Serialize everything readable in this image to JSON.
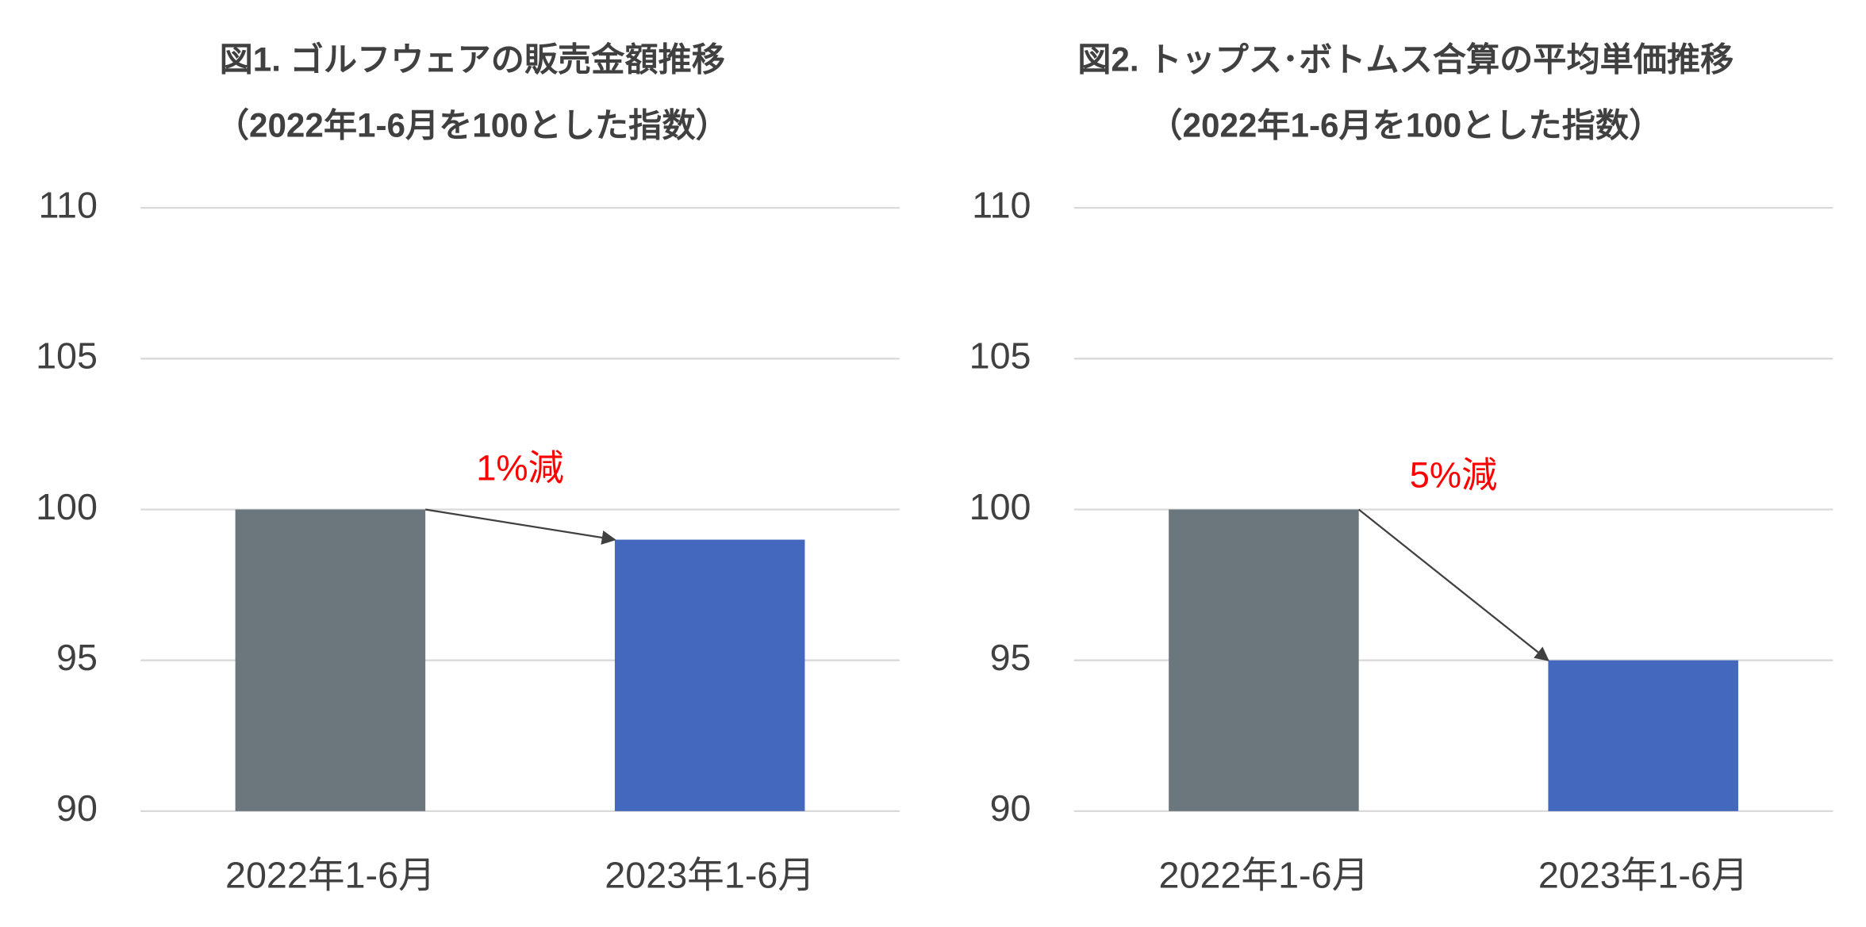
{
  "chart_data": [
    {
      "type": "bar",
      "title": "図1. ゴルフウェアの販売金額推移",
      "subtitle": "（2022年1-6月を100とした指数）",
      "categories": [
        "2022年1-6月",
        "2023年1-6月"
      ],
      "values": [
        100,
        99
      ],
      "colors": [
        "#6b767d",
        "#4568bf"
      ],
      "annotation": "1%減",
      "ylim": [
        90,
        110
      ],
      "yticks": [
        90,
        95,
        100,
        105,
        110
      ],
      "grid": true
    },
    {
      "type": "bar",
      "title": "図2. トップス･ボトムス合算の平均単価推移",
      "subtitle": "（2022年1-6月を100とした指数）",
      "categories": [
        "2022年1-6月",
        "2023年1-6月"
      ],
      "values": [
        100,
        95
      ],
      "colors": [
        "#6b767d",
        "#4568bf"
      ],
      "annotation": "5%減",
      "ylim": [
        90,
        110
      ],
      "yticks": [
        90,
        95,
        100,
        105,
        110
      ],
      "grid": true
    }
  ]
}
